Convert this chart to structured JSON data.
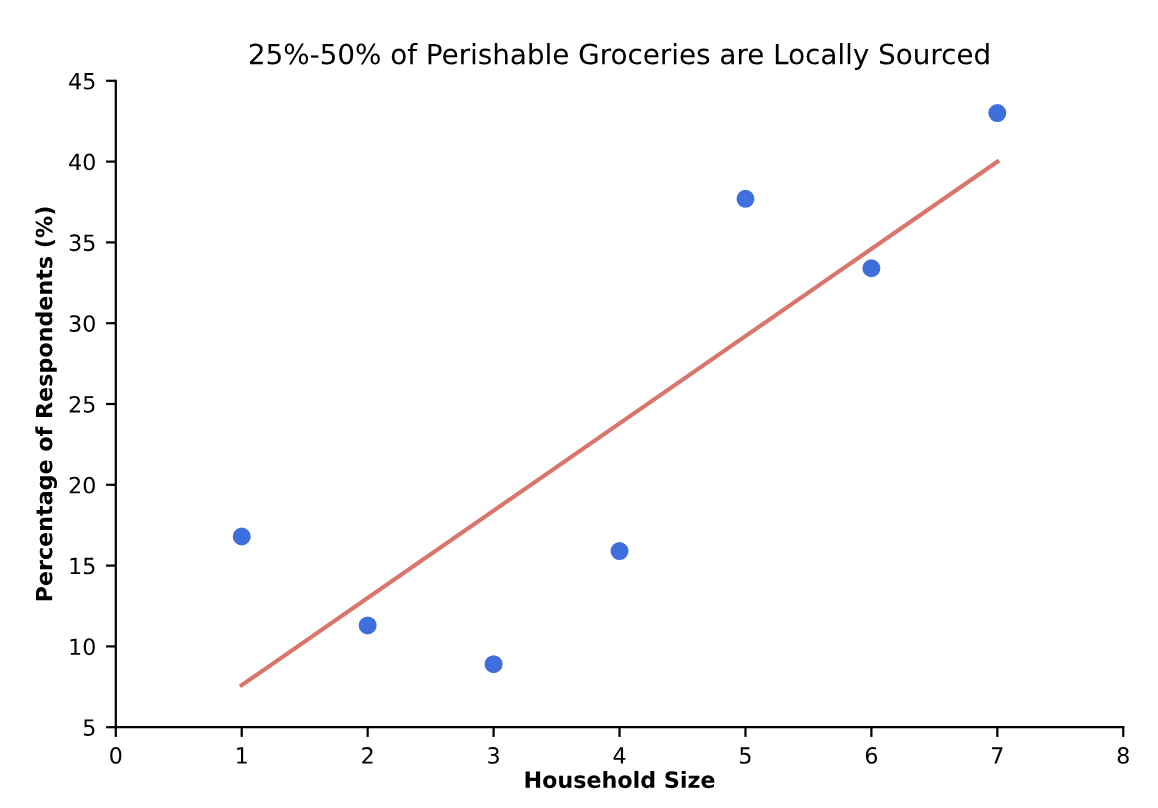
{
  "chart_data": {
    "type": "scatter",
    "title": "25%-50% of Perishable Groceries are Locally Sourced",
    "xlabel": "Household Size",
    "ylabel": "Percentage of Respondents (%)",
    "series": [
      {
        "color": "#3f6fdc",
        "x": [
          1,
          2,
          3,
          4,
          5,
          6,
          7
        ],
        "values": [
          16.8,
          11.3,
          8.9,
          15.9,
          37.7,
          33.4,
          43.0
        ]
      },
      {
        "type": "line",
        "marker": "none",
        "color": "#d9756b",
        "x": [
          1,
          7
        ],
        "values": [
          7.6,
          40.0
        ]
      }
    ],
    "xlim": [
      0,
      8
    ],
    "ylim": [
      5,
      45
    ],
    "xticks": [
      0,
      1,
      2,
      3,
      4,
      5,
      6,
      7,
      8
    ],
    "yticks": [
      5,
      10,
      15,
      20,
      25,
      30,
      35,
      40,
      45
    ],
    "grid": false,
    "legend": false,
    "marker": "circle"
  }
}
